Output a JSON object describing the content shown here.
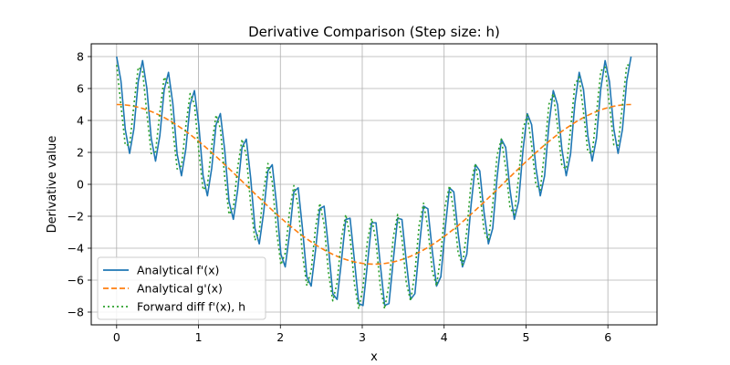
{
  "chart_data": {
    "type": "line",
    "title": "Derivative Comparison (Step size: h)",
    "xlabel": "x",
    "ylabel": "Derivative value",
    "xlim": [
      -0.31,
      6.6
    ],
    "ylim": [
      -8.8,
      8.8
    ],
    "xticks": [
      0,
      1,
      2,
      3,
      4,
      5,
      6
    ],
    "yticks": [
      -8,
      -6,
      -4,
      -2,
      0,
      2,
      4,
      6,
      8
    ],
    "xtick_labels": [
      "0",
      "1",
      "2",
      "3",
      "4",
      "5",
      "6"
    ],
    "ytick_labels": [
      "−8",
      "−6",
      "−4",
      "−2",
      "0",
      "2",
      "4",
      "6",
      "8"
    ],
    "grid": true,
    "legend_position": "lower-left",
    "x_range": [
      0,
      6.2832
    ],
    "n_points": 120,
    "series": [
      {
        "name": "Analytical f'(x)",
        "formula": "5*cos(x) + 3*cos(20*x)",
        "color": "#1f77b4",
        "linestyle": "solid"
      },
      {
        "name": "Analytical g'(x)",
        "formula": "5*cos(x)",
        "color": "#ff7f0e",
        "linestyle": "dashed"
      },
      {
        "name": "Forward diff f'(x), h",
        "formula": "forward difference of 5*sin(x) + 0.15*sin(20*x)",
        "color": "#2ca02c",
        "linestyle": "dotted"
      }
    ]
  }
}
